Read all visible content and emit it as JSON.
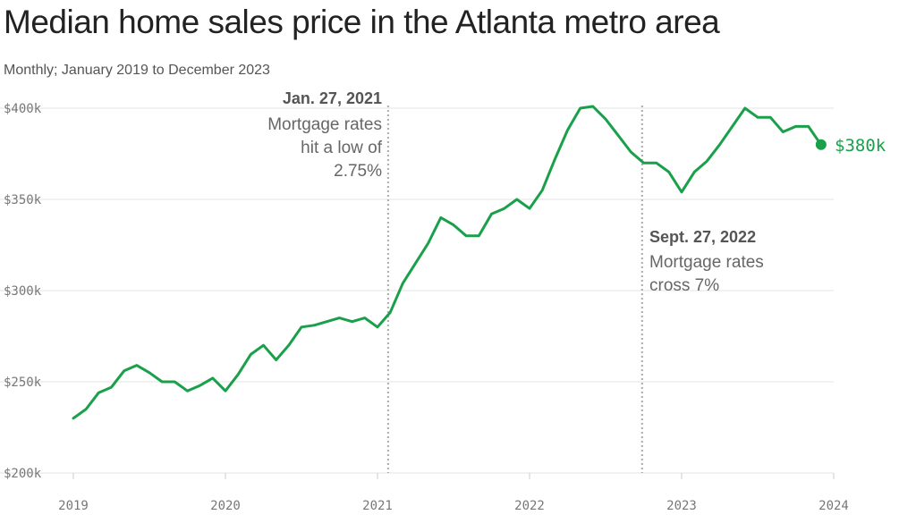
{
  "title": "Median home sales price in the Atlanta metro area",
  "subtitle": "Monthly; January 2019 to December 2023",
  "colors": {
    "line": "#1aa04a",
    "grid": "#e3e3e3",
    "annotation_line": "#aaaaaa",
    "text": "#555555"
  },
  "chart_data": {
    "type": "line",
    "title": "Median home sales price in the Atlanta metro area",
    "subtitle": "Monthly; January 2019 to December 2023",
    "xlabel": "",
    "ylabel": "",
    "xlim": [
      2019,
      2024
    ],
    "ylim": [
      200,
      400
    ],
    "x_ticks": [
      {
        "value": 2019,
        "label": "2019"
      },
      {
        "value": 2020,
        "label": "2020"
      },
      {
        "value": 2021,
        "label": "2021"
      },
      {
        "value": 2022,
        "label": "2022"
      },
      {
        "value": 2023,
        "label": "2023"
      },
      {
        "value": 2024,
        "label": "2024"
      }
    ],
    "y_ticks": [
      {
        "value": 200,
        "label": "$200k"
      },
      {
        "value": 250,
        "label": "$250k"
      },
      {
        "value": 300,
        "label": "$300k"
      },
      {
        "value": 350,
        "label": "$350k"
      },
      {
        "value": 400,
        "label": "$400k"
      }
    ],
    "series": [
      {
        "name": "Median home sales price ($k)",
        "start": "2019-01",
        "values": [
          230,
          235,
          244,
          247,
          256,
          259,
          255,
          250,
          250,
          245,
          248,
          252,
          245,
          254,
          265,
          270,
          262,
          270,
          280,
          281,
          283,
          285,
          283,
          285,
          280,
          288,
          304,
          315,
          326,
          340,
          336,
          330,
          330,
          342,
          345,
          350,
          345,
          355,
          372,
          388,
          400,
          401,
          394,
          385,
          376,
          370,
          370,
          365,
          354,
          365,
          371,
          380,
          390,
          400,
          395,
          395,
          387,
          390,
          390,
          380
        ]
      }
    ],
    "end_label": "$380k",
    "annotations": [
      {
        "date": "Jan. 27, 2021",
        "x": 2021.07,
        "title": "Jan. 27, 2021",
        "lines": [
          "Mortgage rates",
          "hit a low of",
          "2.75%"
        ]
      },
      {
        "date": "Sept. 27, 2022",
        "x": 2022.74,
        "title": "Sept. 27, 2022",
        "lines": [
          "Mortgage rates",
          "cross 7%"
        ]
      }
    ],
    "legend": "none",
    "grid": true
  }
}
